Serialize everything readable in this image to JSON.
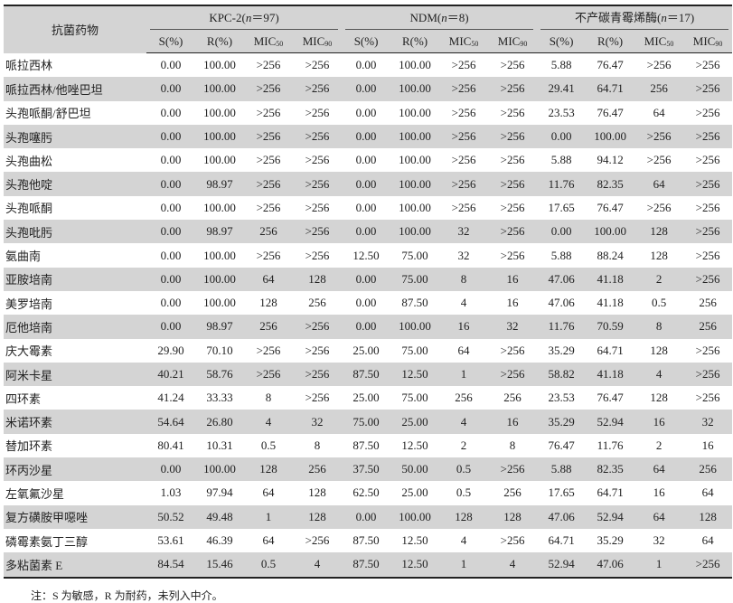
{
  "table": {
    "first_header": "抗菌药物",
    "groups": [
      {
        "prefix": "KPC-2(",
        "n": "n",
        "suffix": "＝97)"
      },
      {
        "prefix": "NDM(",
        "n": "n",
        "suffix": "＝8)"
      },
      {
        "prefix": "不产碳青霉烯酶(",
        "n": "n",
        "suffix": "＝17)"
      }
    ],
    "subheaders": [
      "S(%)",
      "R(%)",
      "MIC50",
      "MIC90"
    ],
    "rows": [
      [
        "哌拉西林",
        "0.00",
        "100.00",
        ">256",
        ">256",
        "0.00",
        "100.00",
        ">256",
        ">256",
        "5.88",
        "76.47",
        ">256",
        ">256"
      ],
      [
        "哌拉西林/他唑巴坦",
        "0.00",
        "100.00",
        ">256",
        ">256",
        "0.00",
        "100.00",
        ">256",
        ">256",
        "29.41",
        "64.71",
        "256",
        ">256"
      ],
      [
        "头孢哌酮/舒巴坦",
        "0.00",
        "100.00",
        ">256",
        ">256",
        "0.00",
        "100.00",
        ">256",
        ">256",
        "23.53",
        "76.47",
        "64",
        ">256"
      ],
      [
        "头孢噻肟",
        "0.00",
        "100.00",
        ">256",
        ">256",
        "0.00",
        "100.00",
        ">256",
        ">256",
        "0.00",
        "100.00",
        ">256",
        ">256"
      ],
      [
        "头孢曲松",
        "0.00",
        "100.00",
        ">256",
        ">256",
        "0.00",
        "100.00",
        ">256",
        ">256",
        "5.88",
        "94.12",
        ">256",
        ">256"
      ],
      [
        "头孢他啶",
        "0.00",
        "98.97",
        ">256",
        ">256",
        "0.00",
        "100.00",
        ">256",
        ">256",
        "11.76",
        "82.35",
        "64",
        ">256"
      ],
      [
        "头孢哌酮",
        "0.00",
        "100.00",
        ">256",
        ">256",
        "0.00",
        "100.00",
        ">256",
        ">256",
        "17.65",
        "76.47",
        ">256",
        ">256"
      ],
      [
        "头孢吡肟",
        "0.00",
        "98.97",
        "256",
        ">256",
        "0.00",
        "100.00",
        "32",
        ">256",
        "0.00",
        "100.00",
        "128",
        ">256"
      ],
      [
        "氨曲南",
        "0.00",
        "100.00",
        ">256",
        ">256",
        "12.50",
        "75.00",
        "32",
        ">256",
        "5.88",
        "88.24",
        "128",
        ">256"
      ],
      [
        "亚胺培南",
        "0.00",
        "100.00",
        "64",
        "128",
        "0.00",
        "75.00",
        "8",
        "16",
        "47.06",
        "41.18",
        "2",
        ">256"
      ],
      [
        "美罗培南",
        "0.00",
        "100.00",
        "128",
        "256",
        "0.00",
        "87.50",
        "4",
        "16",
        "47.06",
        "41.18",
        "0.5",
        "256"
      ],
      [
        "厄他培南",
        "0.00",
        "98.97",
        "256",
        ">256",
        "0.00",
        "100.00",
        "16",
        "32",
        "11.76",
        "70.59",
        "8",
        "256"
      ],
      [
        "庆大霉素",
        "29.90",
        "70.10",
        ">256",
        ">256",
        "25.00",
        "75.00",
        "64",
        ">256",
        "35.29",
        "64.71",
        "128",
        ">256"
      ],
      [
        "阿米卡星",
        "40.21",
        "58.76",
        ">256",
        ">256",
        "87.50",
        "12.50",
        "1",
        ">256",
        "58.82",
        "41.18",
        "4",
        ">256"
      ],
      [
        "四环素",
        "41.24",
        "33.33",
        "8",
        ">256",
        "25.00",
        "75.00",
        "256",
        "256",
        "23.53",
        "76.47",
        "128",
        ">256"
      ],
      [
        "米诺环素",
        "54.64",
        "26.80",
        "4",
        "32",
        "75.00",
        "25.00",
        "4",
        "16",
        "35.29",
        "52.94",
        "16",
        "32"
      ],
      [
        "替加环素",
        "80.41",
        "10.31",
        "0.5",
        "8",
        "87.50",
        "12.50",
        "2",
        "8",
        "76.47",
        "11.76",
        "2",
        "16"
      ],
      [
        "环丙沙星",
        "0.00",
        "100.00",
        "128",
        "256",
        "37.50",
        "50.00",
        "0.5",
        ">256",
        "5.88",
        "82.35",
        "64",
        "256"
      ],
      [
        "左氧氟沙星",
        "1.03",
        "97.94",
        "64",
        "128",
        "62.50",
        "25.00",
        "0.5",
        "256",
        "17.65",
        "64.71",
        "16",
        "64"
      ],
      [
        "复方磺胺甲噁唑",
        "50.52",
        "49.48",
        "1",
        "128",
        "0.00",
        "100.00",
        "128",
        "128",
        "47.06",
        "52.94",
        "64",
        "128"
      ],
      [
        "磷霉素氨丁三醇",
        "53.61",
        "46.39",
        "64",
        ">256",
        "87.50",
        "12.50",
        "4",
        ">256",
        "64.71",
        "35.29",
        "32",
        "64"
      ],
      [
        "多粘菌素 E",
        "84.54",
        "15.46",
        "0.5",
        "4",
        "87.50",
        "12.50",
        "1",
        "4",
        "52.94",
        "47.06",
        "1",
        ">256"
      ]
    ]
  },
  "note": "注：S 为敏感，R 为耐药，未列入中介。"
}
